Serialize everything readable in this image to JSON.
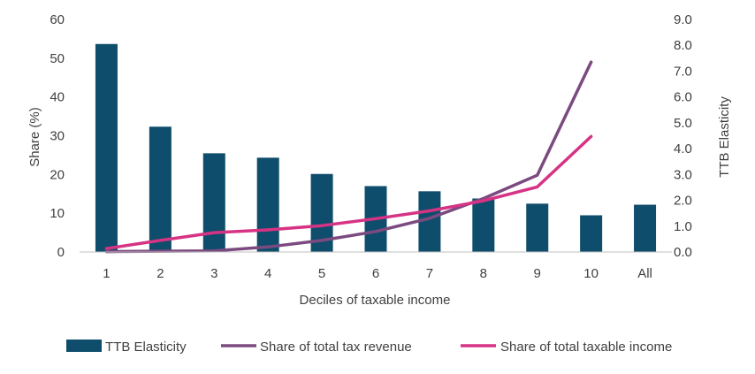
{
  "chart_data": {
    "type": "bar+line",
    "title": "",
    "xlabel": "Deciles of taxable income",
    "ylabel_left": "Share (%)",
    "ylabel_right": "TTB Elasticity",
    "ylim_left": [
      0,
      60
    ],
    "ylim_right": [
      0,
      9
    ],
    "yticks_left": [
      "0",
      "10",
      "20",
      "30",
      "40",
      "50",
      "60"
    ],
    "yticks_right": [
      "0.0",
      "1.0",
      "2.0",
      "3.0",
      "4.0",
      "5.0",
      "6.0",
      "7.0",
      "8.0",
      "9.0"
    ],
    "categories": [
      "1",
      "2",
      "3",
      "4",
      "5",
      "6",
      "7",
      "8",
      "9",
      "10",
      "All"
    ],
    "bar_series": {
      "name": "TTB Elasticity",
      "axis": "right",
      "color": "#0e4d6b",
      "values": [
        8.05,
        4.85,
        3.82,
        3.65,
        3.02,
        2.55,
        2.35,
        2.07,
        1.87,
        1.42,
        1.83
      ]
    },
    "line_series": [
      {
        "name": "Share of total tax revenue",
        "axis": "left",
        "color": "#7b4a80",
        "values": [
          0.1,
          0.2,
          0.3,
          1.3,
          3.0,
          5.3,
          8.7,
          13.8,
          19.8,
          49.0
        ]
      },
      {
        "name": "Share of total taxable income",
        "axis": "left",
        "color": "#d63384",
        "values": [
          0.9,
          3.0,
          5.0,
          5.7,
          6.8,
          8.6,
          10.6,
          13.2,
          16.8,
          29.8
        ]
      }
    ],
    "legend": [
      {
        "label": "TTB Elasticity",
        "kind": "bar",
        "color": "#0e4d6b"
      },
      {
        "label": "Share of total tax revenue",
        "kind": "line",
        "color": "#7b4a80"
      },
      {
        "label": "Share of total taxable income",
        "kind": "line",
        "color": "#d63384"
      }
    ],
    "legend_position": "bottom",
    "grid": false
  }
}
